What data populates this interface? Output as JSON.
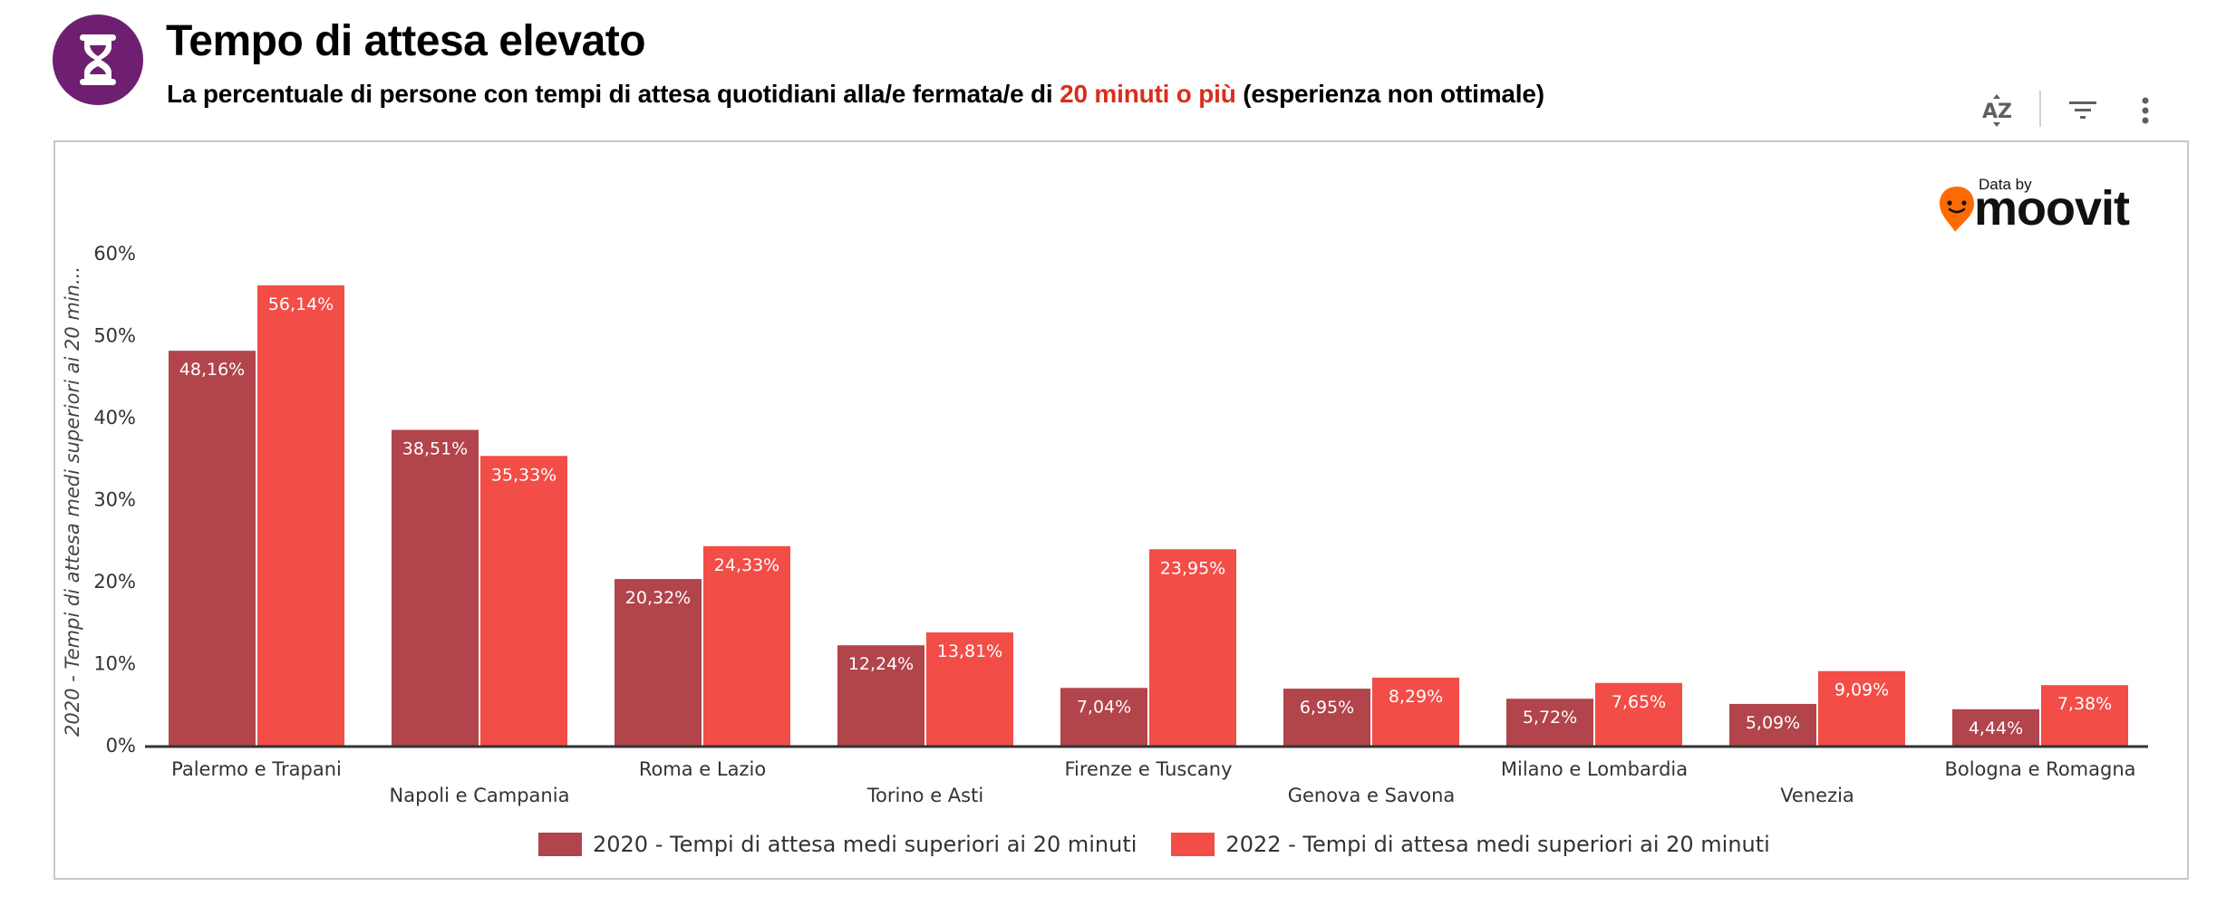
{
  "header": {
    "icon": "hourglass-icon",
    "icon_color": "#6E1F71",
    "title": "Tempo di attesa elevato",
    "subtitle_prefix": "La percentuale di persone con tempi di attesa quotidiani alla/e fermata/e di ",
    "subtitle_highlight": "20 minuti o più",
    "subtitle_suffix": " (esperienza non ottimale)",
    "highlight_color": "#D92E1C"
  },
  "toolbar": {
    "sort_icon": "sort-az-icon",
    "filter_icon": "filter-icon",
    "more_icon": "more-vertical-icon"
  },
  "branding": {
    "data_by": "Data by",
    "brand": "moovit",
    "pin_color": "#FF6A00"
  },
  "chart_data": {
    "type": "bar",
    "title": "Tempo di attesa elevato",
    "xlabel": "",
    "ylabel": "2020 - Tempi di attesa medi superiori ai 20 min...",
    "ylim": [
      0,
      60
    ],
    "yticks": [
      0,
      10,
      20,
      30,
      40,
      50,
      60
    ],
    "ytick_labels": [
      "0%",
      "10%",
      "20%",
      "30%",
      "40%",
      "50%",
      "60%"
    ],
    "grid": false,
    "legend_position": "bottom",
    "categories": [
      "Palermo e Trapani",
      "Napoli e Campania",
      "Roma e Lazio",
      "Torino e Asti",
      "Firenze e Tuscany",
      "Genova e Savona",
      "Milano e Lombardia",
      "Venezia",
      "Bologna e Romagna"
    ],
    "series": [
      {
        "name": "2020 - Tempi di attesa medi superiori ai 20 minuti",
        "color": "#B2444B",
        "values": [
          48.16,
          38.51,
          20.32,
          12.24,
          7.04,
          6.95,
          5.72,
          5.09,
          4.44
        ],
        "labels": [
          "48,16%",
          "38,51%",
          "20,32%",
          "12,24%",
          "7,04%",
          "6,95%",
          "5,72%",
          "5,09%",
          "4,44%"
        ]
      },
      {
        "name": "2022 - Tempi di attesa medi superiori ai 20 minuti",
        "color": "#F24D47",
        "values": [
          56.14,
          35.33,
          24.33,
          13.81,
          23.95,
          8.29,
          7.65,
          9.09,
          7.38
        ],
        "labels": [
          "56,14%",
          "35,33%",
          "24,33%",
          "13,81%",
          "23,95%",
          "8,29%",
          "7,65%",
          "9,09%",
          "7,38%"
        ]
      }
    ]
  }
}
